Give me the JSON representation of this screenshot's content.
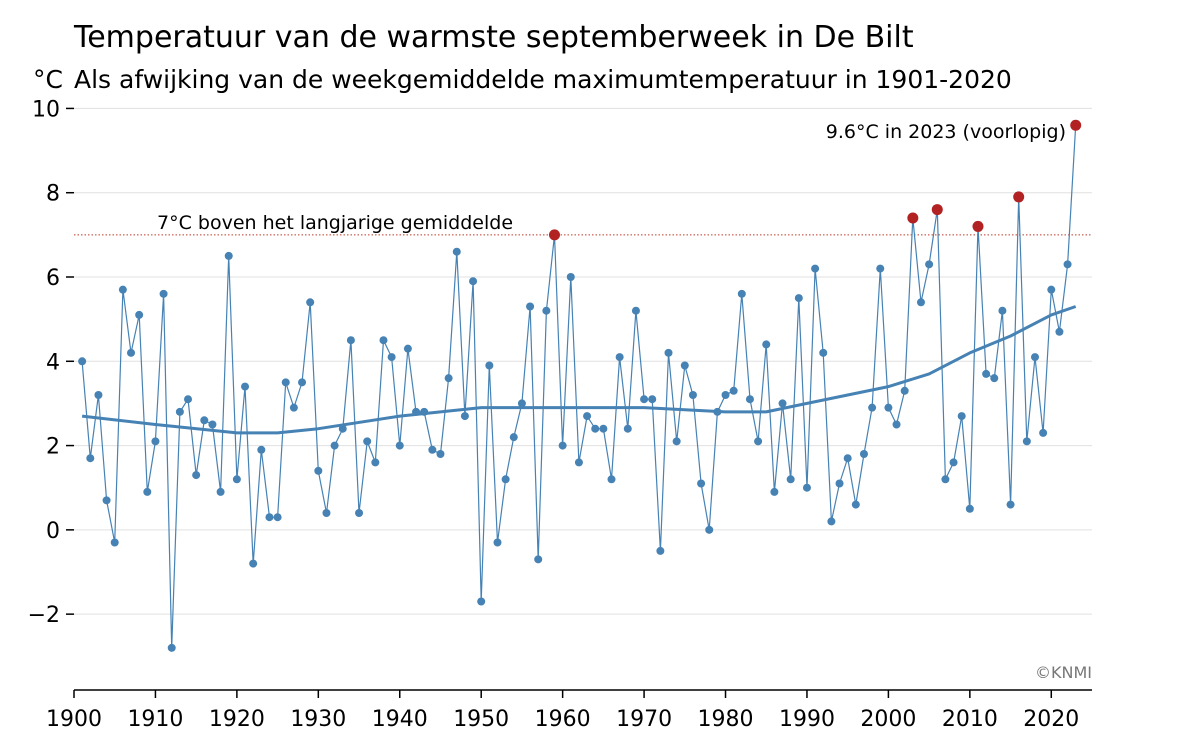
{
  "chart_data": {
    "type": "line",
    "title": "Temperatuur van de warmste septemberweek in De Bilt",
    "unit_label": "°C",
    "subtitle": "Als afwijking van de weekgemiddelde maximumtemperatuur in 1901-2020",
    "xlim": [
      1900,
      2025
    ],
    "ylim": [
      -3.8,
      10.2
    ],
    "x_ticks": [
      1900,
      1910,
      1920,
      1930,
      1940,
      1950,
      1960,
      1970,
      1980,
      1990,
      2000,
      2010,
      2020
    ],
    "y_ticks": [
      -2,
      0,
      2,
      4,
      6,
      8,
      10
    ],
    "y_tick_labels": [
      "−2",
      "0",
      "2",
      "4",
      "6",
      "8",
      "10"
    ],
    "grid": "horizontal",
    "threshold": {
      "value": 7,
      "label": "7°C boven het langjarige gemiddelde"
    },
    "record_label": "9.6°C in 2023 (voorlopig)",
    "credit": "©KNMI",
    "colors": {
      "series": "#4682b4",
      "highlight": "#b22222",
      "grid": "#e0e0e0",
      "threshold": "#c0392b"
    },
    "series": [
      {
        "x": [
          1901,
          1902,
          1903,
          1904,
          1905,
          1906,
          1907,
          1908,
          1909,
          1910,
          1911,
          1912,
          1913,
          1914,
          1915,
          1916,
          1917,
          1918,
          1919,
          1920,
          1921,
          1922,
          1923,
          1924,
          1925,
          1926,
          1927,
          1928,
          1929,
          1930,
          1931,
          1932,
          1933,
          1934,
          1935,
          1936,
          1937,
          1938,
          1939,
          1940,
          1941,
          1942,
          1943,
          1944,
          1945,
          1946,
          1947,
          1948,
          1949,
          1950,
          1951,
          1952,
          1953,
          1954,
          1955,
          1956,
          1957,
          1958,
          1959,
          1960,
          1961,
          1962,
          1963,
          1964,
          1965,
          1966,
          1967,
          1968,
          1969,
          1970,
          1971,
          1972,
          1973,
          1974,
          1975,
          1976,
          1977,
          1978,
          1979,
          1980,
          1981,
          1982,
          1983,
          1984,
          1985,
          1986,
          1987,
          1988,
          1989,
          1990,
          1991,
          1992,
          1993,
          1994,
          1995,
          1996,
          1997,
          1998,
          1999,
          2000,
          2001,
          2002,
          2003,
          2004,
          2005,
          2006,
          2007,
          2008,
          2009,
          2010,
          2011,
          2012,
          2013,
          2014,
          2015,
          2016,
          2017,
          2018,
          2019,
          2020,
          2021,
          2022,
          2023
        ],
        "values": [
          4.0,
          1.7,
          3.2,
          0.7,
          -0.3,
          5.7,
          4.2,
          5.1,
          0.9,
          2.1,
          5.6,
          -2.8,
          2.8,
          3.1,
          1.3,
          2.6,
          2.5,
          0.9,
          6.5,
          1.2,
          3.4,
          -0.8,
          1.9,
          0.3,
          0.3,
          3.5,
          2.9,
          3.5,
          5.4,
          1.4,
          0.4,
          2.0,
          2.4,
          4.5,
          0.4,
          2.1,
          1.6,
          4.5,
          4.1,
          2.0,
          4.3,
          2.8,
          2.8,
          1.9,
          1.8,
          3.6,
          6.6,
          2.7,
          5.9,
          -1.7,
          3.9,
          -0.3,
          1.2,
          2.2,
          3.0,
          5.3,
          -0.7,
          5.2,
          7.0,
          2.0,
          6.0,
          1.6,
          2.7,
          2.4,
          2.4,
          1.2,
          4.1,
          2.4,
          5.2,
          3.1,
          3.1,
          -0.5,
          4.2,
          2.1,
          3.9,
          3.2,
          1.1,
          0.0,
          2.8,
          3.2,
          3.3,
          5.6,
          3.1,
          2.1,
          4.4,
          0.9,
          3.0,
          1.2,
          5.5,
          1.0,
          6.2,
          4.2,
          0.2,
          1.1,
          1.7,
          0.6,
          1.8,
          2.9,
          6.2,
          2.9,
          2.5,
          3.3,
          7.4,
          5.4,
          6.3,
          7.6,
          1.2,
          1.6,
          2.7,
          0.5,
          7.2,
          3.7,
          3.6,
          5.2,
          0.6,
          7.9,
          2.1,
          4.1,
          2.3,
          5.7,
          4.7,
          6.3,
          9.6
        ],
        "highlight_years": [
          1959,
          2003,
          2006,
          2011,
          2016,
          2023
        ]
      },
      {
        "x": [
          1901,
          1910,
          1920,
          1925,
          1930,
          1940,
          1950,
          1960,
          1970,
          1980,
          1985,
          1990,
          2000,
          2005,
          2010,
          2015,
          2020,
          2023
        ],
        "values": [
          2.7,
          2.5,
          2.3,
          2.3,
          2.4,
          2.7,
          2.9,
          2.9,
          2.9,
          2.8,
          2.8,
          3.0,
          3.4,
          3.7,
          4.2,
          4.6,
          5.1,
          5.3
        ]
      }
    ]
  }
}
